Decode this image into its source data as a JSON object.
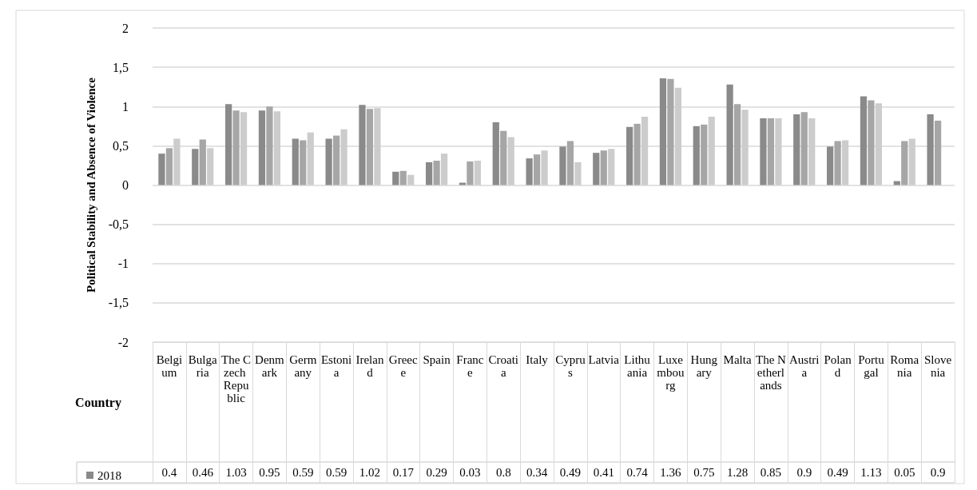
{
  "chart_data": {
    "type": "bar",
    "ylabel": "Political Stability and Absence of Violence",
    "xlabel": "Country",
    "categories": [
      "Belgium",
      "Bulgaria",
      "The Czech Republic",
      "Denmark",
      "Germany",
      "Estonia",
      "Ireland",
      "Greece",
      "Spain",
      "France",
      "Croatia",
      "Italy",
      "Cyprus",
      "Latvia",
      "Lithuania",
      "Luxembourg",
      "Hungary",
      "Malta",
      "The Netherlands",
      "Austria",
      "Poland",
      "Portugal",
      "Romania",
      "Slovenia"
    ],
    "series": [
      {
        "name": "2018",
        "color": "#8a8a8a",
        "values": [
          0.4,
          0.46,
          1.03,
          0.95,
          0.59,
          0.59,
          1.02,
          0.17,
          0.29,
          0.03,
          0.8,
          0.34,
          0.49,
          0.41,
          0.74,
          1.36,
          0.75,
          1.28,
          0.85,
          0.9,
          0.49,
          1.13,
          0.05,
          0.9
        ],
        "value_labels": [
          "0.4",
          "0.46",
          "1.03",
          "0.95",
          "0.59",
          "0.59",
          "1.02",
          "0.17",
          "0.29",
          "0.03",
          "0.8",
          "0.34",
          "0.49",
          "0.41",
          "0.74",
          "1.36",
          "0.75",
          "1.28",
          "0.85",
          "0.9",
          "0.49",
          "1.13",
          "0.05",
          "0.9"
        ]
      },
      {
        "color": "#a6a6a6",
        "values": [
          0.47,
          0.58,
          0.95,
          1.0,
          0.57,
          0.63,
          0.97,
          0.18,
          0.31,
          0.3,
          0.69,
          0.39,
          0.56,
          0.44,
          0.78,
          1.35,
          0.77,
          1.03,
          0.85,
          0.93,
          0.56,
          1.08,
          0.56,
          0.82
        ]
      },
      {
        "color": "#cccccc",
        "values": [
          0.59,
          0.47,
          0.93,
          0.94,
          0.67,
          0.71,
          0.98,
          0.13,
          0.4,
          0.31,
          0.61,
          0.44,
          0.29,
          0.46,
          0.87,
          1.24,
          0.87,
          0.96,
          0.85,
          0.85,
          0.57,
          1.04,
          0.59,
          null
        ]
      }
    ],
    "ylim": [
      -2,
      2
    ],
    "yticks": [
      -2,
      {
        "value": -1.5,
        "label": "-1,5"
      },
      -1,
      {
        "value": -0.5,
        "label": "-0,5"
      },
      0,
      {
        "value": 0.5,
        "label": "0,5"
      },
      1,
      {
        "value": 1.5,
        "label": "1,5"
      },
      2
    ],
    "grid": "y",
    "legend": "bottom left"
  }
}
